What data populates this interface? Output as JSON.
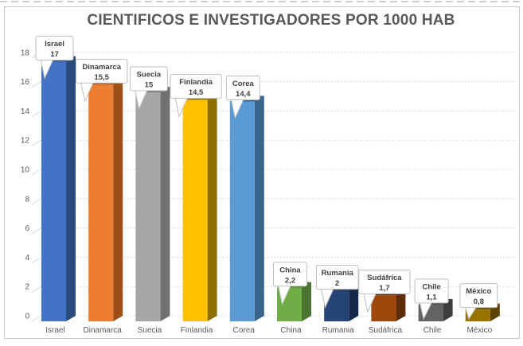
{
  "chart_data": {
    "type": "bar",
    "subtype": "3d-column",
    "title": "CIENTIFICOS E INVESTIGADORES POR 1000 HAB",
    "categories": [
      "Israel",
      "Dinamarca",
      "Suecia",
      "Finlandia",
      "Corea",
      "China",
      "Rumania",
      "Sudáfrica",
      "Chile",
      "México"
    ],
    "values": [
      17,
      15.5,
      15,
      14.5,
      14.4,
      2.2,
      2,
      1.7,
      1.1,
      0.8
    ],
    "value_labels": [
      "17",
      "15,5",
      "15",
      "14,5",
      "14,4",
      "2,2",
      "2",
      "1,7",
      "1,1",
      "0,8"
    ],
    "xlabel": "",
    "ylabel": "",
    "ylim": [
      0,
      18
    ],
    "ytick_step": 2,
    "yticks": [
      "0",
      "2",
      "4",
      "6",
      "8",
      "10",
      "12",
      "14",
      "16",
      "18"
    ],
    "grid": true,
    "legend": "none",
    "data_labels": "callout-above-bar",
    "bar_styles": [
      {
        "category": "Israel",
        "front": "#4472C4",
        "side": "#2A4A7C"
      },
      {
        "category": "Dinamarca",
        "front": "#ED7D31",
        "side": "#9C4F17"
      },
      {
        "category": "Suecia",
        "front": "#A6A6A6",
        "side": "#707070"
      },
      {
        "category": "Finlandia",
        "front": "#FFC000",
        "side": "#8F6E00"
      },
      {
        "category": "Corea",
        "front": "#5B9BD5",
        "side": "#3A648C"
      },
      {
        "category": "China",
        "front": "#70AD47",
        "side": "#4A7330"
      },
      {
        "category": "Rumania",
        "front": "#264478",
        "side": "#17294A"
      },
      {
        "category": "Sudáfrica",
        "front": "#9E480E",
        "side": "#5F2B08"
      },
      {
        "category": "Chile",
        "front": "#636363",
        "side": "#3D3D3D"
      },
      {
        "category": "México",
        "front": "#997300",
        "side": "#5C4500"
      }
    ],
    "colors": {
      "title_text": "#595959",
      "axis_text": "#595959",
      "gridline": "#D9D9D9",
      "callout_text": "#404040",
      "callout_border": "#BFBFBF",
      "callout_bg": "#FFFFFF",
      "chart_border": "#C9C9C9",
      "background": "#FFFFFF"
    }
  }
}
